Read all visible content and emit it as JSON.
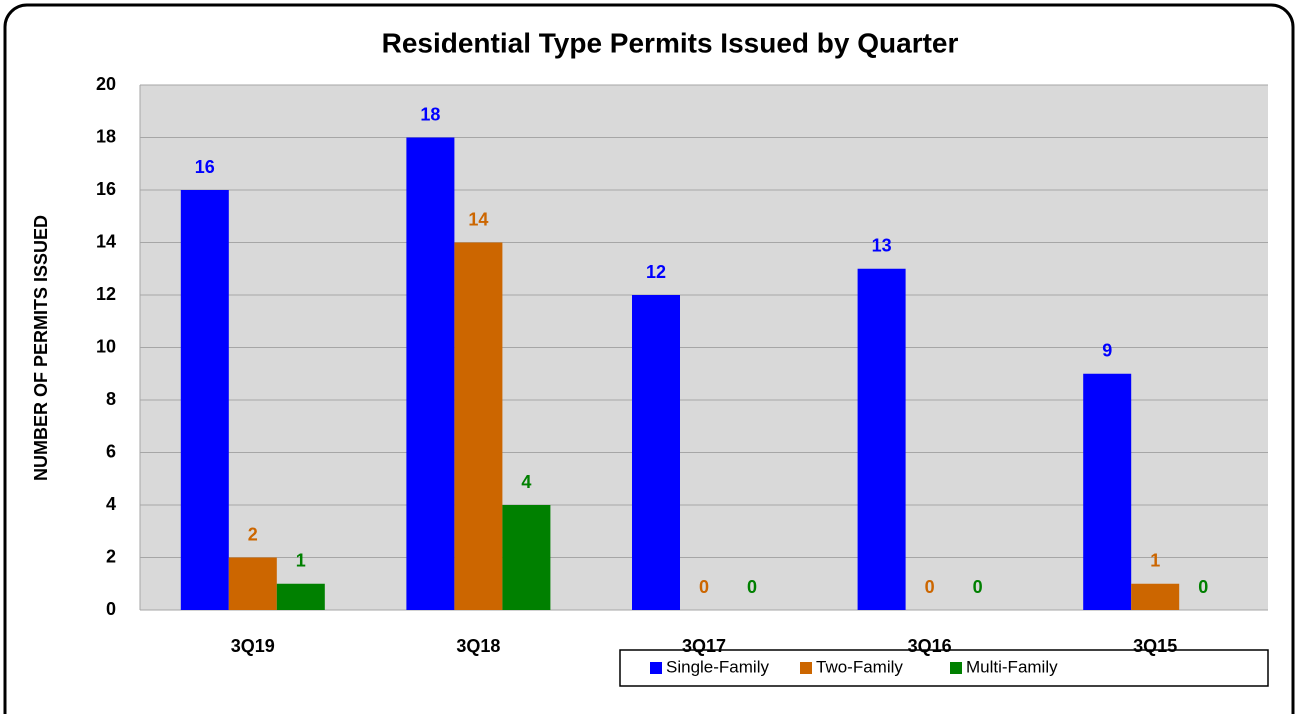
{
  "chart_data": {
    "type": "bar",
    "title": "Residential Type Permits Issued by Quarter",
    "y_label": "NUMBER OF PERMITS ISSUED",
    "categories": [
      "3Q19",
      "3Q18",
      "3Q17",
      "3Q16",
      "3Q15"
    ],
    "series": [
      {
        "name": "Single-Family",
        "color": "#0000ff",
        "values": [
          16,
          18,
          12,
          13,
          9
        ]
      },
      {
        "name": "Two-Family",
        "color": "#cc6600",
        "values": [
          2,
          14,
          0,
          0,
          1
        ]
      },
      {
        "name": "Multi-Family",
        "color": "#008000",
        "values": [
          1,
          4,
          0,
          0,
          0
        ]
      }
    ],
    "ylim": [
      0,
      20
    ],
    "yticks": [
      0,
      2,
      4,
      6,
      8,
      10,
      12,
      14,
      16,
      18,
      20
    ],
    "grid": true,
    "legend": "bottom-right"
  }
}
